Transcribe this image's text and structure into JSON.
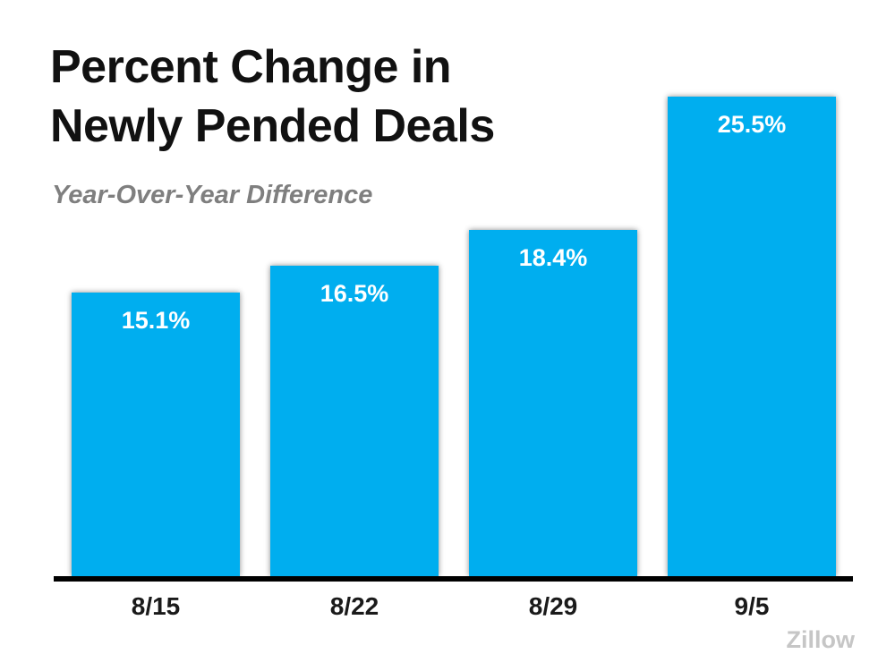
{
  "header": {
    "title_line1": "Percent Change in",
    "title_line2": "Newly Pended Deals",
    "subtitle": "Year-Over-Year Difference"
  },
  "chart_data": {
    "type": "bar",
    "title": "Percent Change in Newly Pended Deals",
    "subtitle": "Year-Over-Year Difference",
    "categories": [
      "8/15",
      "8/22",
      "8/29",
      "9/5"
    ],
    "values": [
      15.1,
      16.5,
      18.4,
      25.5
    ],
    "value_labels": [
      "15.1%",
      "16.5%",
      "18.4%",
      "25.5%"
    ],
    "xlabel": "",
    "ylabel": "",
    "ylim": [
      0,
      25.5
    ],
    "grid": false,
    "legend": false,
    "bar_color": "#00AEEF",
    "value_label_color": "#ffffff",
    "axis_color": "#000000",
    "label_placement": "inside-top"
  },
  "footer": {
    "attribution": "Zillow",
    "attribution_color": "#c6c6c6"
  }
}
